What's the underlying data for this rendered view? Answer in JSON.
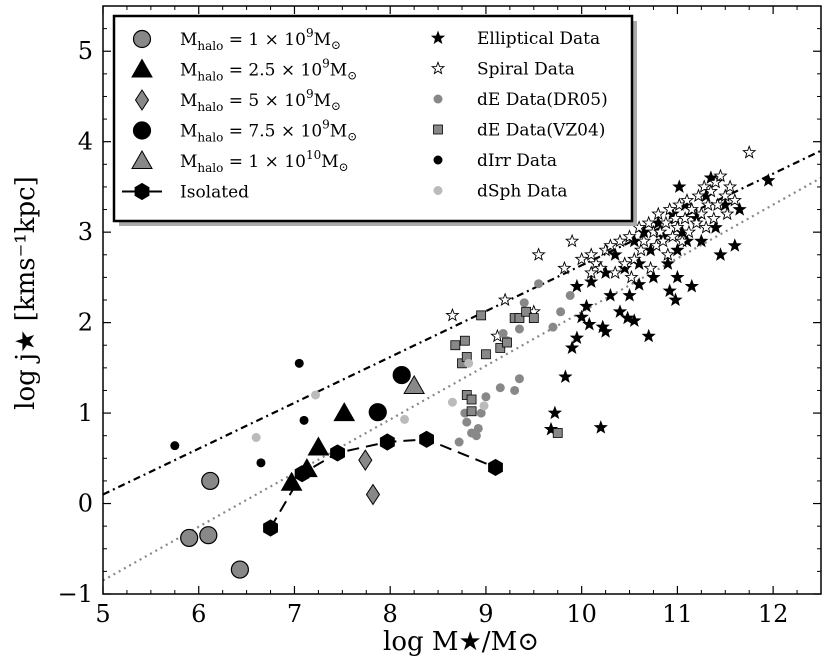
{
  "chart_data": {
    "type": "scatter",
    "title": "",
    "xlabel": "log M★/M⊙",
    "ylabel": "log j★ [kms⁻¹kpc]",
    "xlim": [
      5,
      12.5
    ],
    "ylim": [
      -1,
      5.5
    ],
    "xticks": [
      5,
      6,
      7,
      8,
      9,
      10,
      11,
      12
    ],
    "yticks": [
      -1,
      0,
      1,
      2,
      3,
      4,
      5
    ],
    "xtick_labels": [
      "5",
      "6",
      "7",
      "8",
      "9",
      "10",
      "11",
      "12"
    ],
    "ytick_labels": [
      "−1",
      "0",
      "1",
      "2",
      "3",
      "4",
      "5"
    ],
    "grid": false,
    "legend_position": "top-left",
    "reference_lines": [
      {
        "style": "dash-dot",
        "color": "#000000",
        "x": [
          5,
          12.5
        ],
        "y": [
          0.1,
          3.9
        ]
      },
      {
        "style": "dotted",
        "color": "#888888",
        "x": [
          5,
          12.5
        ],
        "y": [
          -0.85,
          3.6
        ]
      }
    ],
    "series": [
      {
        "name": "Mhalo = 1 × 10⁹M⊙",
        "marker": "circle",
        "size": "large",
        "fill": "#888888",
        "points": [
          [
            5.9,
            -0.38
          ],
          [
            6.1,
            -0.35
          ],
          [
            6.12,
            0.25
          ],
          [
            6.43,
            -0.73
          ]
        ]
      },
      {
        "name": "Mhalo = 2.5 × 10⁹M⊙",
        "marker": "triangle",
        "size": "large",
        "fill": "#000000",
        "points": [
          [
            6.97,
            0.23
          ],
          [
            7.13,
            0.38
          ],
          [
            7.25,
            0.62
          ],
          [
            7.52,
            1.0
          ]
        ]
      },
      {
        "name": "Mhalo = 5 × 10⁹M⊙",
        "marker": "diamond",
        "size": "large",
        "fill": "#888888",
        "points": [
          [
            7.74,
            0.48
          ],
          [
            7.82,
            0.1
          ]
        ]
      },
      {
        "name": "Mhalo = 7.5 × 10⁹M⊙",
        "marker": "circle",
        "size": "large",
        "fill": "#000000",
        "points": [
          [
            7.87,
            1.01
          ],
          [
            8.12,
            1.42
          ]
        ]
      },
      {
        "name": "Mhalo = 1 × 10¹⁰M⊙",
        "marker": "triangle",
        "size": "large",
        "fill": "#888888",
        "points": [
          [
            8.25,
            1.3
          ]
        ]
      },
      {
        "name": "Isolated",
        "marker": "hexagon",
        "size": "large",
        "fill": "#000000",
        "connect": "dashed",
        "points": [
          [
            6.75,
            -0.27
          ],
          [
            7.08,
            0.33
          ],
          [
            7.45,
            0.56
          ],
          [
            7.97,
            0.68
          ],
          [
            8.38,
            0.71
          ],
          [
            9.1,
            0.4
          ]
        ]
      },
      {
        "name": "Elliptical Data",
        "marker": "star",
        "size": "small",
        "fill": "#000000",
        "points": [
          [
            9.68,
            0.82
          ],
          [
            9.72,
            1.0
          ],
          [
            9.83,
            1.4
          ],
          [
            9.9,
            1.72
          ],
          [
            9.95,
            1.83
          ],
          [
            9.95,
            2.4
          ],
          [
            10.0,
            2.06
          ],
          [
            10.05,
            2.18
          ],
          [
            10.08,
            1.98
          ],
          [
            10.1,
            2.45
          ],
          [
            10.2,
            0.84
          ],
          [
            10.22,
            1.95
          ],
          [
            10.25,
            2.55
          ],
          [
            10.25,
            1.9
          ],
          [
            10.3,
            2.3
          ],
          [
            10.35,
            2.75
          ],
          [
            10.4,
            2.12
          ],
          [
            10.45,
            2.6
          ],
          [
            10.48,
            2.05
          ],
          [
            10.5,
            2.3
          ],
          [
            10.55,
            2.02
          ],
          [
            10.55,
            2.9
          ],
          [
            10.6,
            2.65
          ],
          [
            10.6,
            2.42
          ],
          [
            10.65,
            3.0
          ],
          [
            10.7,
            1.85
          ],
          [
            10.72,
            2.8
          ],
          [
            10.75,
            2.5
          ],
          [
            10.8,
            3.1
          ],
          [
            10.85,
            2.95
          ],
          [
            10.9,
            2.65
          ],
          [
            10.92,
            2.35
          ],
          [
            10.95,
            3.2
          ],
          [
            10.98,
            2.25
          ],
          [
            11.0,
            2.8
          ],
          [
            11.0,
            2.5
          ],
          [
            11.02,
            3.5
          ],
          [
            11.05,
            3.0
          ],
          [
            11.08,
            3.3
          ],
          [
            11.1,
            2.9
          ],
          [
            11.15,
            2.4
          ],
          [
            11.2,
            3.15
          ],
          [
            11.25,
            2.9
          ],
          [
            11.3,
            3.4
          ],
          [
            11.35,
            3.6
          ],
          [
            11.4,
            3.05
          ],
          [
            11.45,
            2.75
          ],
          [
            11.5,
            3.3
          ],
          [
            11.6,
            2.85
          ],
          [
            11.65,
            3.25
          ],
          [
            11.95,
            3.57
          ]
        ]
      },
      {
        "name": "Spiral Data",
        "marker": "star",
        "size": "small",
        "fill": "#ffffff",
        "points": [
          [
            8.65,
            2.08
          ],
          [
            9.12,
            1.85
          ],
          [
            9.2,
            2.25
          ],
          [
            9.5,
            2.12
          ],
          [
            9.55,
            2.75
          ],
          [
            9.82,
            2.6
          ],
          [
            9.9,
            2.9
          ],
          [
            10.0,
            2.7
          ],
          [
            10.1,
            2.55
          ],
          [
            10.1,
            2.75
          ],
          [
            10.15,
            2.65
          ],
          [
            10.2,
            2.6
          ],
          [
            10.25,
            2.8
          ],
          [
            10.3,
            2.85
          ],
          [
            10.35,
            2.55
          ],
          [
            10.4,
            2.9
          ],
          [
            10.45,
            2.65
          ],
          [
            10.5,
            2.95
          ],
          [
            10.52,
            2.5
          ],
          [
            10.55,
            2.7
          ],
          [
            10.6,
            3.05
          ],
          [
            10.62,
            2.8
          ],
          [
            10.65,
            2.9
          ],
          [
            10.7,
            3.1
          ],
          [
            10.72,
            2.6
          ],
          [
            10.75,
            3.0
          ],
          [
            10.78,
            2.85
          ],
          [
            10.8,
            3.2
          ],
          [
            10.82,
            3.0
          ],
          [
            10.85,
            2.9
          ],
          [
            10.88,
            3.1
          ],
          [
            10.9,
            2.75
          ],
          [
            10.92,
            3.25
          ],
          [
            10.95,
            2.95
          ],
          [
            10.98,
            3.15
          ],
          [
            11.0,
            3.05
          ],
          [
            11.02,
            3.3
          ],
          [
            11.05,
            2.9
          ],
          [
            11.08,
            3.15
          ],
          [
            11.1,
            3.35
          ],
          [
            11.12,
            3.0
          ],
          [
            11.15,
            3.25
          ],
          [
            11.2,
            3.1
          ],
          [
            11.22,
            3.4
          ],
          [
            11.25,
            3.2
          ],
          [
            11.28,
            3.5
          ],
          [
            11.3,
            3.05
          ],
          [
            11.32,
            3.3
          ],
          [
            11.35,
            3.45
          ],
          [
            11.38,
            3.15
          ],
          [
            11.4,
            3.55
          ],
          [
            11.42,
            3.3
          ],
          [
            11.45,
            3.62
          ],
          [
            11.5,
            3.4
          ],
          [
            11.52,
            3.2
          ],
          [
            11.55,
            3.5
          ],
          [
            11.6,
            3.35
          ],
          [
            11.75,
            3.88
          ]
        ]
      },
      {
        "name": "dE Data(DR05)",
        "marker": "circle",
        "size": "small",
        "fill": "#888888",
        "points": [
          [
            8.72,
            0.68
          ],
          [
            8.78,
            1.0
          ],
          [
            8.8,
            0.9
          ],
          [
            8.85,
            0.78
          ],
          [
            8.9,
            0.75
          ],
          [
            8.92,
            0.83
          ],
          [
            8.95,
            1.0
          ],
          [
            9.0,
            1.18
          ],
          [
            9.15,
            1.28
          ],
          [
            9.18,
            1.88
          ],
          [
            9.22,
            1.8
          ],
          [
            9.3,
            1.25
          ],
          [
            9.35,
            1.38
          ],
          [
            9.35,
            1.93
          ],
          [
            9.4,
            2.22
          ],
          [
            9.55,
            2.43
          ],
          [
            9.7,
            1.95
          ],
          [
            9.88,
            2.3
          ],
          [
            9.78,
            2.12
          ]
        ]
      },
      {
        "name": "dE Data(VZ04)",
        "marker": "square",
        "size": "small",
        "fill": "#888888",
        "points": [
          [
            8.68,
            1.75
          ],
          [
            8.75,
            1.55
          ],
          [
            8.78,
            1.8
          ],
          [
            8.8,
            1.62
          ],
          [
            8.8,
            1.2
          ],
          [
            8.85,
            1.15
          ],
          [
            8.85,
            1.02
          ],
          [
            8.95,
            2.08
          ],
          [
            9.0,
            1.65
          ],
          [
            9.15,
            1.72
          ],
          [
            9.22,
            1.78
          ],
          [
            9.3,
            2.05
          ],
          [
            9.35,
            2.05
          ],
          [
            9.42,
            2.12
          ],
          [
            9.5,
            2.05
          ],
          [
            9.75,
            0.78
          ]
        ]
      },
      {
        "name": "dIrr Data",
        "marker": "circle",
        "size": "small",
        "fill": "#000000",
        "points": [
          [
            5.75,
            0.64
          ],
          [
            6.65,
            0.45
          ],
          [
            7.05,
            1.55
          ],
          [
            7.1,
            0.92
          ]
        ]
      },
      {
        "name": "dSph Data",
        "marker": "circle",
        "size": "small",
        "fill": "#bbbbbb",
        "points": [
          [
            6.6,
            0.73
          ],
          [
            7.22,
            1.2
          ],
          [
            8.15,
            0.93
          ],
          [
            8.65,
            1.12
          ],
          [
            8.82,
            1.55
          ],
          [
            8.98,
            1.08
          ]
        ]
      }
    ],
    "legend_left": [
      {
        "label": "M",
        "sub": "halo",
        "value": " = 1 × 10",
        "sup": "9",
        "unit": "M⊙",
        "marker": "circle",
        "fill": "#888888"
      },
      {
        "label": "M",
        "sub": "halo",
        "value": " = 2.5 × 10",
        "sup": "9",
        "unit": "M⊙",
        "marker": "triangle",
        "fill": "#000000"
      },
      {
        "label": "M",
        "sub": "halo",
        "value": " = 5 × 10",
        "sup": "9",
        "unit": "M⊙",
        "marker": "diamond",
        "fill": "#888888"
      },
      {
        "label": "M",
        "sub": "halo",
        "value": " = 7.5 × 10",
        "sup": "9",
        "unit": "M⊙",
        "marker": "circle",
        "fill": "#000000"
      },
      {
        "label": "M",
        "sub": "halo",
        "value": " = 1 × 10",
        "sup": "10",
        "unit": "M⊙",
        "marker": "triangle",
        "fill": "#888888"
      },
      {
        "label": "Isolated",
        "sub": "",
        "value": "",
        "sup": "",
        "unit": "",
        "marker": "hexagon-line",
        "fill": "#000000"
      }
    ],
    "legend_right": [
      {
        "label": "Elliptical Data",
        "marker": "star",
        "fill": "#000000"
      },
      {
        "label": "Spiral Data",
        "marker": "star",
        "fill": "#ffffff"
      },
      {
        "label": "dE Data(DR05)",
        "marker": "circle-small",
        "fill": "#888888"
      },
      {
        "label": "dE Data(VZ04)",
        "marker": "square",
        "fill": "#888888"
      },
      {
        "label": "dIrr Data",
        "marker": "circle-small",
        "fill": "#000000"
      },
      {
        "label": "dSph Data",
        "marker": "circle-small",
        "fill": "#bbbbbb"
      }
    ]
  }
}
